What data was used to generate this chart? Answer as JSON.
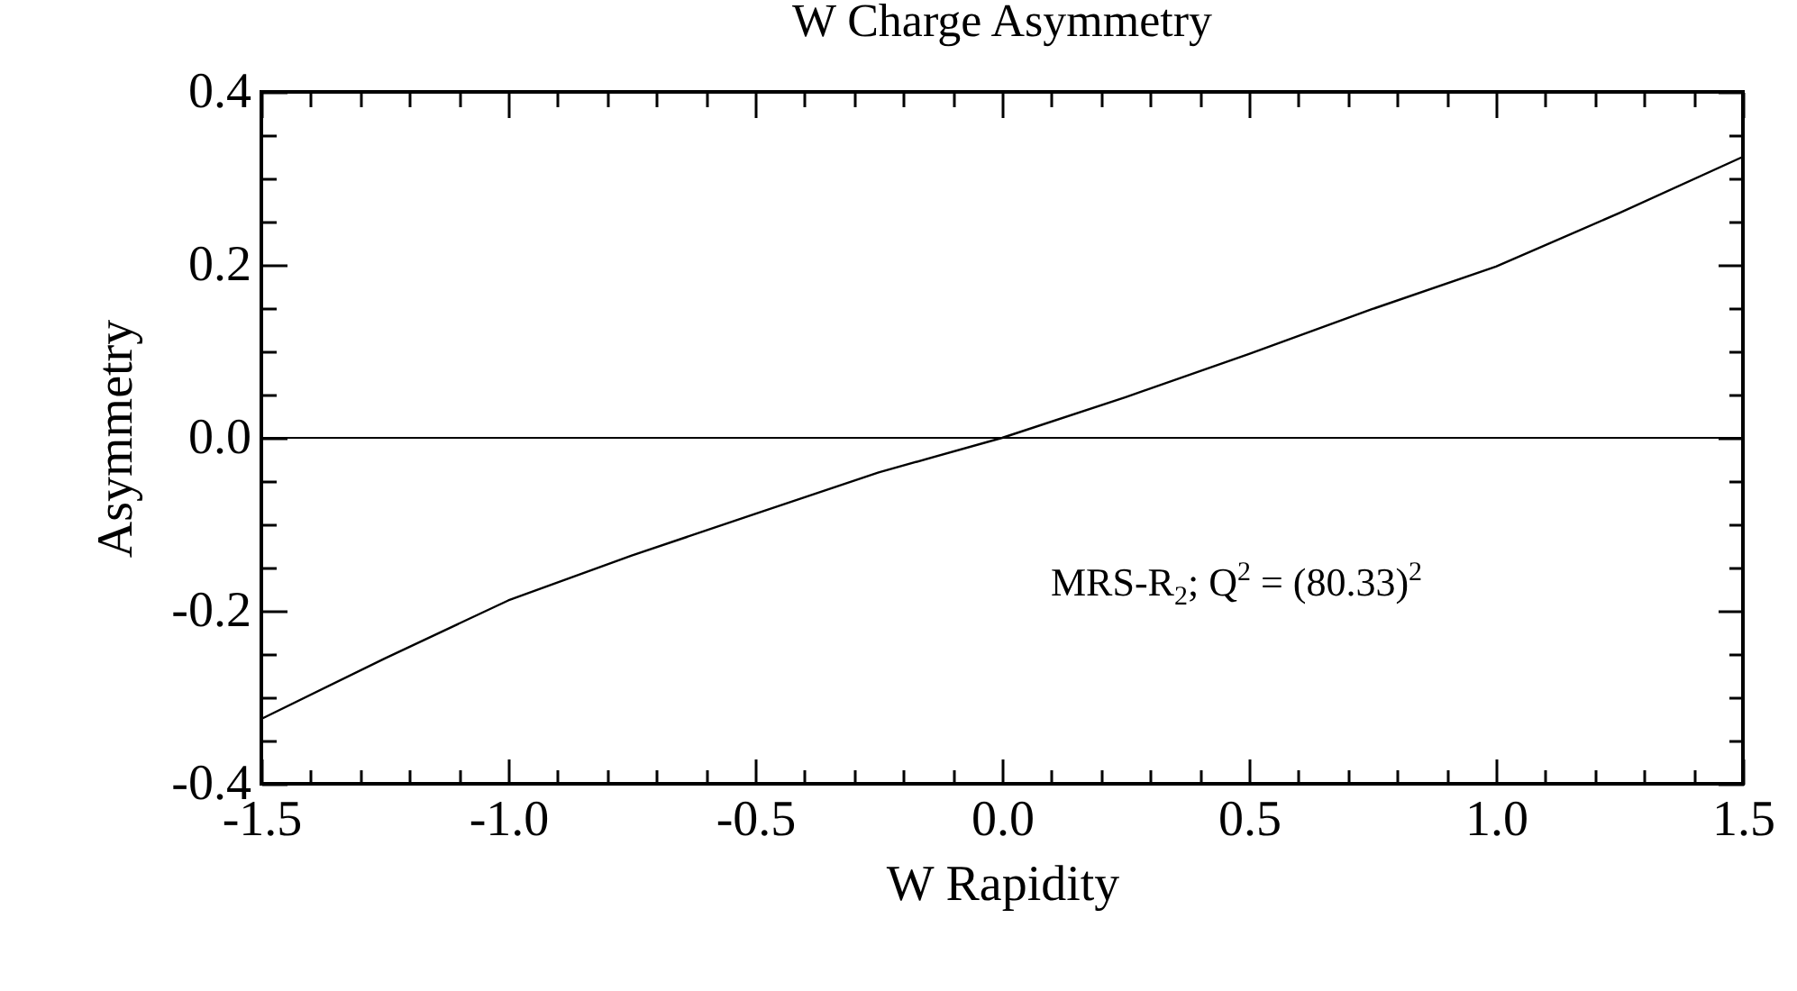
{
  "chart_data": {
    "type": "line",
    "title": "W Charge Asymmetry",
    "xlabel": "W Rapidity",
    "ylabel": "Asymmetry",
    "x": [
      -1.5,
      -1.25,
      -1.0,
      -0.75,
      -0.5,
      -0.25,
      0,
      0.25,
      0.5,
      0.75,
      1.0,
      1.25,
      1.5
    ],
    "series": [
      {
        "color": "#000000",
        "values": [
          -0.325,
          -0.255,
          -0.188,
          -0.136,
          -0.088,
          -0.04,
          0,
          0.047,
          0.097,
          0.149,
          0.198,
          0.26,
          0.325
        ]
      }
    ],
    "xlim": [
      -1.5,
      1.5
    ],
    "ylim": [
      -0.4,
      0.4
    ],
    "xticks": [
      {
        "value": -1.5,
        "label": "-1.5"
      },
      {
        "value": -1.4,
        "label": null
      },
      {
        "value": -1.3,
        "label": null
      },
      {
        "value": -1.2,
        "label": null
      },
      {
        "value": -1.1,
        "label": null
      },
      {
        "value": -1.0,
        "label": "-1.0"
      },
      {
        "value": -0.9,
        "label": null
      },
      {
        "value": -0.8,
        "label": null
      },
      {
        "value": -0.7,
        "label": null
      },
      {
        "value": -0.6,
        "label": null
      },
      {
        "value": -0.5,
        "label": "-0.5"
      },
      {
        "value": -0.4,
        "label": null
      },
      {
        "value": -0.3,
        "label": null
      },
      {
        "value": -0.2,
        "label": null
      },
      {
        "value": -0.1,
        "label": null
      },
      {
        "value": 0,
        "label": "0.0"
      },
      {
        "value": 0.1,
        "label": null
      },
      {
        "value": 0.2,
        "label": null
      },
      {
        "value": 0.3,
        "label": null
      },
      {
        "value": 0.4,
        "label": null
      },
      {
        "value": 0.5,
        "label": "0.5"
      },
      {
        "value": 0.6,
        "label": null
      },
      {
        "value": 0.7,
        "label": null
      },
      {
        "value": 0.8,
        "label": null
      },
      {
        "value": 0.9,
        "label": null
      },
      {
        "value": 1.0,
        "label": "1.0"
      },
      {
        "value": 1.1,
        "label": null
      },
      {
        "value": 1.2,
        "label": null
      },
      {
        "value": 1.3,
        "label": null
      },
      {
        "value": 1.4,
        "label": null
      },
      {
        "value": 1.5,
        "label": "1.5"
      }
    ],
    "yticks": [
      {
        "value": -0.4,
        "label": "-0.4"
      },
      {
        "value": -0.35,
        "label": null
      },
      {
        "value": -0.3,
        "label": null
      },
      {
        "value": -0.25,
        "label": null
      },
      {
        "value": -0.2,
        "label": "-0.2"
      },
      {
        "value": -0.15,
        "label": null
      },
      {
        "value": -0.1,
        "label": null
      },
      {
        "value": -0.05,
        "label": null
      },
      {
        "value": 0,
        "label": "0.0"
      },
      {
        "value": 0.05,
        "label": null
      },
      {
        "value": 0.1,
        "label": null
      },
      {
        "value": 0.15,
        "label": null
      },
      {
        "value": 0.2,
        "label": "0.2"
      },
      {
        "value": 0.25,
        "label": null
      },
      {
        "value": 0.3,
        "label": null
      },
      {
        "value": 0.35,
        "label": null
      },
      {
        "value": 0.4,
        "label": "0.4"
      }
    ],
    "ref_lines": [
      {
        "axis": "y",
        "value": 0,
        "color": "#000000"
      }
    ],
    "annotations": [
      "MRS-R$_{2}$; Q$^{2}$ = (80.33)$^{2}$"
    ]
  }
}
